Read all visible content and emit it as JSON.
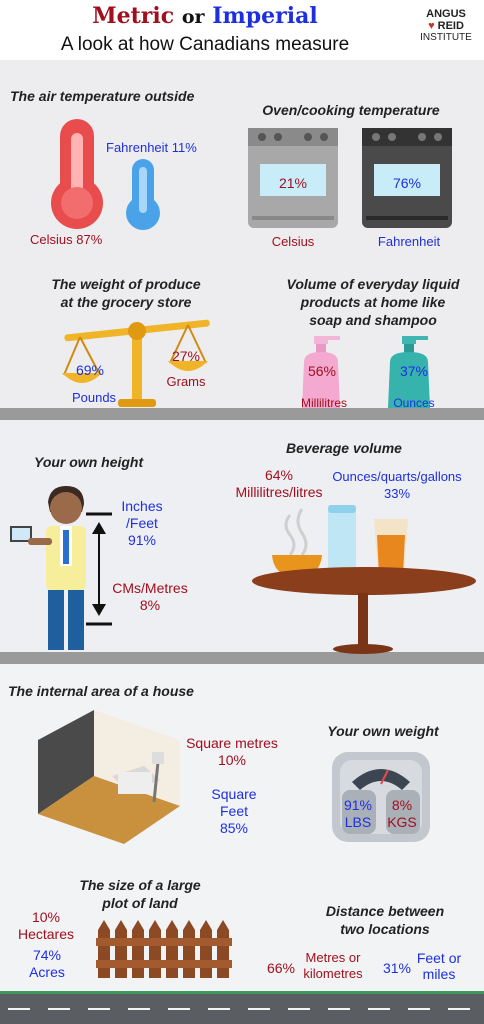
{
  "header": {
    "title_metric": "Metric",
    "title_or": "or",
    "title_imperial": "Imperial",
    "subtitle": "A look at how Canadians measure",
    "logo_line1": "ANGUS",
    "logo_line2": "REID",
    "logo_line3": "INSTITUTE"
  },
  "colors": {
    "metric": "#a10f1e",
    "imperial": "#1e2fe0"
  },
  "air_temperature": {
    "question": "The air temperature outside",
    "fahrenheit_label": "Fahrenheit",
    "fahrenheit_pct": "11%",
    "celsius_label": "Celsius",
    "celsius_pct": "87%"
  },
  "oven": {
    "question": "Oven/cooking temperature",
    "celsius_pct": "21%",
    "celsius_label": "Celsius",
    "fahrenheit_pct": "76%",
    "fahrenheit_label": "Fahrenheit"
  },
  "produce": {
    "question_line1": "The weight of produce",
    "question_line2": "at the grocery store",
    "pounds_pct": "69%",
    "pounds_label": "Pounds",
    "grams_pct": "27%",
    "grams_label": "Grams"
  },
  "liquid": {
    "question_line1": "Volume of everyday liquid",
    "question_line2": "products at home like",
    "question_line3": "soap and shampoo",
    "millilitres_pct": "56%",
    "millilitres_label": "Millilitres",
    "ounces_pct": "37%",
    "ounces_label": "Ounces"
  },
  "height": {
    "question": "Your own height",
    "inches_label_line1": "Inches",
    "inches_label_line2": "/Feet",
    "inches_pct": "91%",
    "cms_label": "CMs/Metres",
    "cms_pct": "8%"
  },
  "beverage": {
    "question": "Beverage volume",
    "ml_pct": "64%",
    "ml_label": "Millilitres/litres",
    "oz_label": "Ounces/quarts/gallons",
    "oz_pct": "33%"
  },
  "house_area": {
    "question": "The internal area of a house",
    "sqm_label": "Square metres",
    "sqm_pct": "10%",
    "sqft_label": "Square Feet",
    "sqft_pct": "85%"
  },
  "body_weight": {
    "question": "Your own weight",
    "lbs_pct": "91%",
    "lbs_label": "LBS",
    "kgs_pct": "8%",
    "kgs_label": "KGS"
  },
  "land": {
    "question_line1": "The size of a large",
    "question_line2": "plot of land",
    "hectares_pct": "10%",
    "hectares_label": "Hectares",
    "acres_pct": "74%",
    "acres_label": "Acres"
  },
  "distance": {
    "question_line1": "Distance between",
    "question_line2": "two locations",
    "metres_pct": "66%",
    "metres_label_line1": "Metres or",
    "metres_label_line2": "kilometres",
    "feet_pct": "31%",
    "feet_label_line1": "Feet or",
    "feet_label_line2": "miles"
  }
}
